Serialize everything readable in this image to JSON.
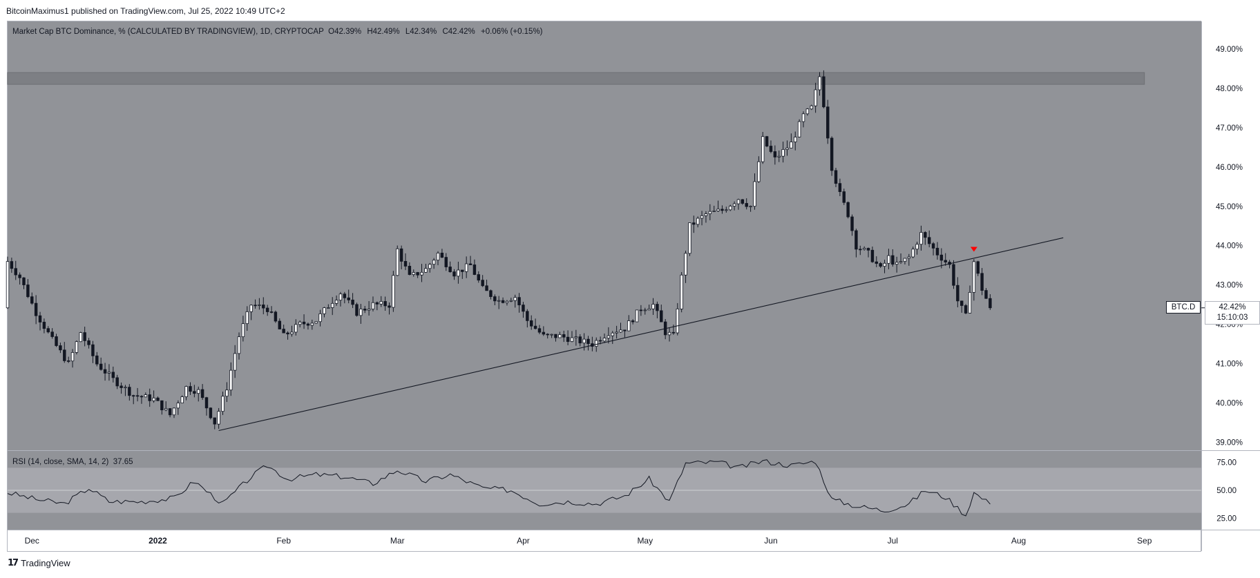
{
  "header": {
    "attribution": "BitcoinMaximus1 published on TradingView.com, Jul 25, 2022 10:49 UTC+2"
  },
  "legend": {
    "title": "Market Cap BTC Dominance, % (CALCULATED BY TRADINGVIEW), 1D, CRYPTOCAP",
    "open_label": "O",
    "open": "42.39%",
    "high_label": "H",
    "high": "42.49%",
    "low_label": "L",
    "low": "42.34%",
    "close_label": "C",
    "close": "42.42%",
    "change": "+0.06% (+0.15%)"
  },
  "rsi_legend": {
    "label": "RSI (14, close, SMA, 14, 2)",
    "value": "37.65"
  },
  "last_price": {
    "symbol": "BTC.D",
    "value": "42.42%",
    "countdown": "15:10:03"
  },
  "footer": {
    "logo_glyph": "17",
    "brand": "TradingView"
  },
  "colors": {
    "plot_bg": "#919398",
    "rsi_band": "#a6a7ad",
    "up_candle": "#ffffff",
    "down_candle": "#131722",
    "line": "#131722",
    "marker": "#ff0000",
    "resistance_zone": "#7d7f84"
  },
  "chart_data": [
    {
      "type": "candlestick",
      "title": "Market Cap BTC Dominance, % (CALCULATED BY TRADINGVIEW), 1D, CRYPTOCAP",
      "ylim": [
        38.8,
        49.7
      ],
      "y_ticks": [
        "49.00%",
        "48.00%",
        "47.00%",
        "46.00%",
        "45.00%",
        "44.00%",
        "43.00%",
        "42.00%",
        "41.00%",
        "40.00%",
        "39.00%"
      ],
      "x_ticks": [
        "Dec",
        "2022",
        "Feb",
        "Mar",
        "Apr",
        "May",
        "Jun",
        "Jul",
        "Aug",
        "Sep"
      ],
      "x_range": [
        "2021-11-25",
        "2022-09-15"
      ],
      "close_anchors": [
        [
          "2021-11-25",
          43.6
        ],
        [
          "2021-11-28",
          43.2
        ],
        [
          "2021-12-02",
          42.3
        ],
        [
          "2021-12-06",
          41.6
        ],
        [
          "2021-12-10",
          41.0
        ],
        [
          "2021-12-13",
          41.8
        ],
        [
          "2021-12-17",
          41.0
        ],
        [
          "2021-12-21",
          40.6
        ],
        [
          "2021-12-26",
          40.2
        ],
        [
          "2021-12-31",
          40.1
        ],
        [
          "2022-01-04",
          39.7
        ],
        [
          "2022-01-08",
          40.4
        ],
        [
          "2022-01-11",
          40.3
        ],
        [
          "2022-01-15",
          39.5
        ],
        [
          "2022-01-18",
          40.4
        ],
        [
          "2022-01-21",
          41.7
        ],
        [
          "2022-01-24",
          42.5
        ],
        [
          "2022-01-28",
          42.4
        ],
        [
          "2022-02-01",
          41.7
        ],
        [
          "2022-02-05",
          42.0
        ],
        [
          "2022-02-09",
          42.1
        ],
        [
          "2022-02-13",
          42.6
        ],
        [
          "2022-02-15",
          42.8
        ],
        [
          "2022-02-19",
          42.3
        ],
        [
          "2022-02-23",
          42.5
        ],
        [
          "2022-02-27",
          42.5
        ],
        [
          "2022-03-01",
          43.9
        ],
        [
          "2022-03-04",
          43.2
        ],
        [
          "2022-03-08",
          43.4
        ],
        [
          "2022-03-11",
          43.8
        ],
        [
          "2022-03-15",
          43.3
        ],
        [
          "2022-03-19",
          43.5
        ],
        [
          "2022-03-22",
          42.9
        ],
        [
          "2022-03-26",
          42.6
        ],
        [
          "2022-03-30",
          42.7
        ],
        [
          "2022-04-02",
          42.1
        ],
        [
          "2022-04-06",
          41.7
        ],
        [
          "2022-04-10",
          41.7
        ],
        [
          "2022-04-14",
          41.6
        ],
        [
          "2022-04-18",
          41.5
        ],
        [
          "2022-04-22",
          41.8
        ],
        [
          "2022-04-26",
          41.9
        ],
        [
          "2022-04-30",
          42.4
        ],
        [
          "2022-05-03",
          42.5
        ],
        [
          "2022-05-06",
          41.8
        ],
        [
          "2022-05-08",
          41.7
        ],
        [
          "2022-05-10",
          43.2
        ],
        [
          "2022-05-12",
          44.5
        ],
        [
          "2022-05-16",
          44.8
        ],
        [
          "2022-05-20",
          44.9
        ],
        [
          "2022-05-24",
          45.2
        ],
        [
          "2022-05-27",
          45.0
        ],
        [
          "2022-05-30",
          46.7
        ],
        [
          "2022-06-02",
          46.2
        ],
        [
          "2022-06-06",
          46.6
        ],
        [
          "2022-06-09",
          47.3
        ],
        [
          "2022-06-11",
          47.5
        ],
        [
          "2022-06-13",
          48.3
        ],
        [
          "2022-06-14",
          47.6
        ],
        [
          "2022-06-16",
          46.0
        ],
        [
          "2022-06-18",
          45.3
        ],
        [
          "2022-06-20",
          44.8
        ],
        [
          "2022-06-22",
          44.0
        ],
        [
          "2022-06-25",
          43.8
        ],
        [
          "2022-06-28",
          43.4
        ],
        [
          "2022-06-30",
          43.7
        ],
        [
          "2022-07-02",
          43.5
        ],
        [
          "2022-07-05",
          43.7
        ],
        [
          "2022-07-08",
          44.3
        ],
        [
          "2022-07-12",
          43.8
        ],
        [
          "2022-07-15",
          43.5
        ],
        [
          "2022-07-17",
          42.6
        ],
        [
          "2022-07-19",
          42.2
        ],
        [
          "2022-07-21",
          43.6
        ],
        [
          "2022-07-23",
          42.9
        ],
        [
          "2022-07-25",
          42.42
        ]
      ],
      "trendline": {
        "from": [
          "2022-01-16",
          39.3
        ],
        "to": [
          "2022-08-12",
          44.2
        ]
      },
      "resistance_zone": {
        "from": "2021-11-25",
        "to": "2022-09-01",
        "low": 48.1,
        "high": 48.4
      },
      "marker": {
        "date": "2022-07-21",
        "value": 43.9,
        "shape": "down-triangle"
      },
      "last_value": 42.42
    },
    {
      "type": "line",
      "title": "RSI (14, close, SMA, 14, 2)",
      "ylim": [
        15,
        85
      ],
      "y_ticks": [
        "75.00",
        "50.00",
        "25.00"
      ],
      "band": [
        30,
        70
      ],
      "mid": 50,
      "rsi_anchors": [
        [
          "2021-11-25",
          48
        ],
        [
          "2021-12-02",
          42
        ],
        [
          "2021-12-09",
          38
        ],
        [
          "2021-12-15",
          52
        ],
        [
          "2021-12-20",
          40
        ],
        [
          "2021-12-28",
          40
        ],
        [
          "2022-01-05",
          43
        ],
        [
          "2022-01-10",
          58
        ],
        [
          "2022-01-17",
          38
        ],
        [
          "2022-01-24",
          62
        ],
        [
          "2022-01-28",
          72
        ],
        [
          "2022-02-02",
          60
        ],
        [
          "2022-02-09",
          64
        ],
        [
          "2022-02-16",
          62
        ],
        [
          "2022-02-23",
          56
        ],
        [
          "2022-03-01",
          68
        ],
        [
          "2022-03-08",
          58
        ],
        [
          "2022-03-14",
          64
        ],
        [
          "2022-03-22",
          52
        ],
        [
          "2022-03-29",
          50
        ],
        [
          "2022-04-05",
          38
        ],
        [
          "2022-04-12",
          40
        ],
        [
          "2022-04-19",
          38
        ],
        [
          "2022-04-26",
          45
        ],
        [
          "2022-05-02",
          60
        ],
        [
          "2022-05-07",
          40
        ],
        [
          "2022-05-11",
          74
        ],
        [
          "2022-05-19",
          75
        ],
        [
          "2022-05-24",
          70
        ],
        [
          "2022-05-30",
          76
        ],
        [
          "2022-06-06",
          72
        ],
        [
          "2022-06-12",
          76
        ],
        [
          "2022-06-16",
          42
        ],
        [
          "2022-06-22",
          36
        ],
        [
          "2022-06-29",
          32
        ],
        [
          "2022-07-05",
          38
        ],
        [
          "2022-07-09",
          50
        ],
        [
          "2022-07-14",
          44
        ],
        [
          "2022-07-19",
          28
        ],
        [
          "2022-07-21",
          48
        ],
        [
          "2022-07-25",
          37.65
        ]
      ]
    }
  ]
}
